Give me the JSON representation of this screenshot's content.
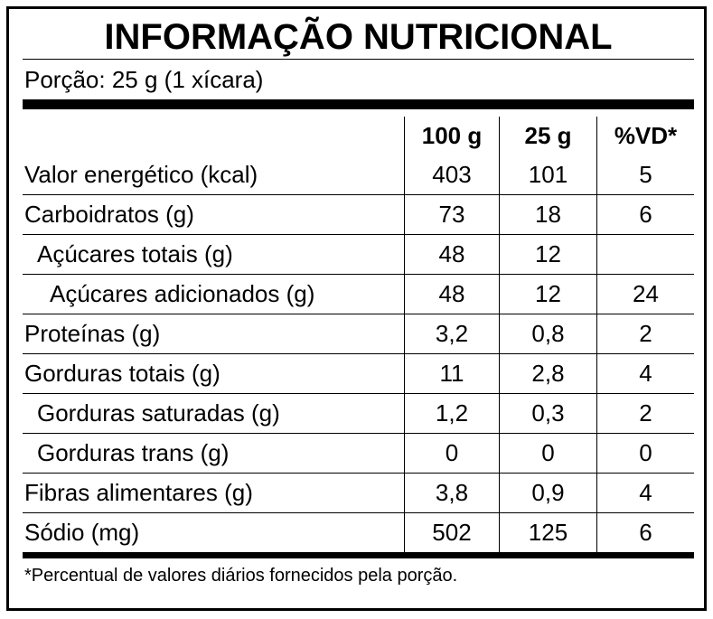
{
  "title": "INFORMAÇÃO NUTRICIONAL",
  "serving": "Porção: 25 g (1 xícara)",
  "table": {
    "header": [
      "100 g",
      "25 g",
      "%VD*"
    ],
    "rows": [
      [
        "Valor energético (kcal)",
        "403",
        "101",
        "5"
      ],
      [
        "Carboidratos (g)",
        "73",
        "18",
        "6"
      ],
      [
        "Açúcares totais (g)",
        "48",
        "12",
        null
      ],
      [
        "Açúcares adicionados (g)",
        "48",
        "12",
        "24"
      ],
      [
        "Proteínas (g)",
        "3,2",
        "0,8",
        "2"
      ],
      [
        "Gorduras totais (g)",
        "11",
        "2,8",
        "4"
      ],
      [
        "Gorduras saturadas (g)",
        "1,2",
        "0,3",
        "2"
      ],
      [
        "Gorduras trans (g)",
        "0",
        "0",
        "0"
      ],
      [
        "Fibras alimentares (g)",
        "3,8",
        "0,9",
        "4"
      ],
      [
        "Sódio (mg)",
        "502",
        "125",
        "6"
      ]
    ]
  },
  "footnote": "*Percentual de valores diários fornecidos pela porção."
}
